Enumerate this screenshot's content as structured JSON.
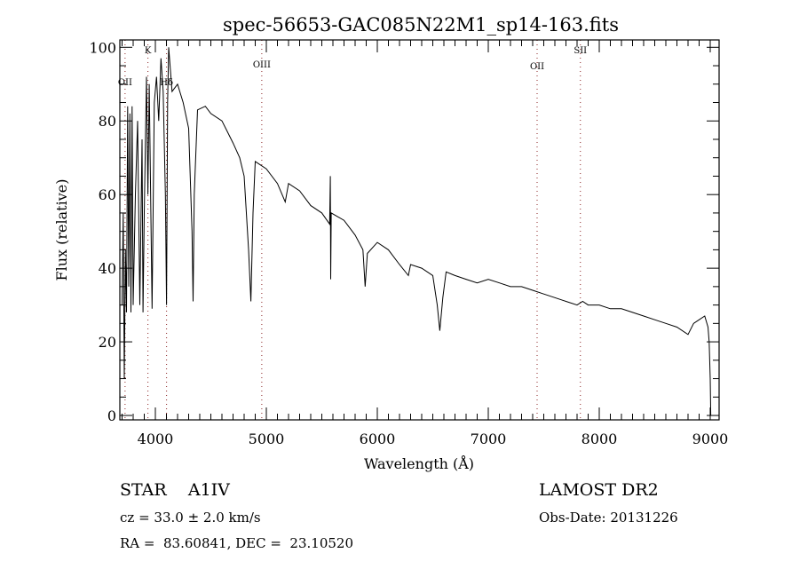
{
  "chart_data": {
    "type": "line",
    "title": "spec-56653-GAC085N22M1_sp14-163.fits",
    "xlabel": "Wavelength (Å)",
    "ylabel": "Flux (relative)",
    "xlim": [
      3680,
      9080
    ],
    "ylim": [
      -1.2,
      102
    ],
    "xticks": [
      4000,
      5000,
      6000,
      7000,
      8000,
      9000
    ],
    "yticks": [
      0,
      20,
      40,
      60,
      80,
      100
    ],
    "grid": false,
    "line_markers": [
      {
        "label": "OII",
        "wavelength": 3727
      },
      {
        "label": "K",
        "wavelength": 3933
      },
      {
        "label": "Hδ",
        "wavelength": 4101
      },
      {
        "label": "OIII",
        "wavelength": 4959
      },
      {
        "label": "OII",
        "wavelength": 7440
      },
      {
        "label": "SII",
        "wavelength": 7830
      }
    ],
    "series": [
      {
        "name": "spectrum",
        "x": [
          3700,
          3710,
          3720,
          3730,
          3740,
          3750,
          3760,
          3770,
          3780,
          3790,
          3800,
          3820,
          3840,
          3860,
          3880,
          3889,
          3900,
          3920,
          3933,
          3945,
          3970,
          3990,
          4010,
          4030,
          4050,
          4070,
          4090,
          4101,
          4110,
          4120,
          4150,
          4200,
          4250,
          4300,
          4330,
          4340,
          4350,
          4380,
          4450,
          4500,
          4600,
          4700,
          4760,
          4800,
          4840,
          4861,
          4880,
          4900,
          5000,
          5100,
          5170,
          5200,
          5300,
          5400,
          5500,
          5570,
          5577,
          5580,
          5585,
          5700,
          5800,
          5870,
          5890,
          5910,
          6000,
          6100,
          6200,
          6280,
          6300,
          6400,
          6500,
          6540,
          6563,
          6590,
          6620,
          6700,
          6800,
          6900,
          7000,
          7100,
          7200,
          7300,
          7400,
          7500,
          7600,
          7700,
          7800,
          7850,
          7900,
          8000,
          8100,
          8200,
          8300,
          8400,
          8500,
          8600,
          8700,
          8800,
          8850,
          8900,
          8950,
          8980,
          8990,
          9000,
          9005
        ],
        "y": [
          30,
          55,
          10,
          45,
          28,
          84,
          35,
          82,
          28,
          84,
          30,
          60,
          80,
          30,
          75,
          28,
          55,
          92,
          60,
          90,
          29,
          85,
          92,
          80,
          97,
          88,
          60,
          30,
          85,
          100,
          88,
          90,
          85,
          78,
          50,
          31,
          60,
          83,
          84,
          82,
          80,
          74,
          70,
          65,
          45,
          31,
          55,
          69,
          67,
          63,
          58,
          63,
          61,
          57,
          55,
          52,
          65,
          37,
          55,
          53,
          49,
          45,
          35,
          44,
          47,
          45,
          41,
          38,
          41,
          40,
          38,
          30,
          23,
          32,
          39,
          38,
          37,
          36,
          37,
          36,
          35,
          35,
          34,
          33,
          32,
          31,
          30,
          31,
          30,
          30,
          29,
          29,
          28,
          27,
          26,
          25,
          24,
          22,
          25,
          26,
          27,
          24,
          20,
          10,
          0
        ]
      }
    ]
  },
  "info": {
    "class": "STAR",
    "subclass": "A1IV",
    "survey": "LAMOST DR2",
    "cz": "cz = 33.0 ± 2.0 km/s",
    "obs_date": "Obs-Date: 20131226",
    "radec": "RA =  83.60841, DEC =  23.10520"
  }
}
